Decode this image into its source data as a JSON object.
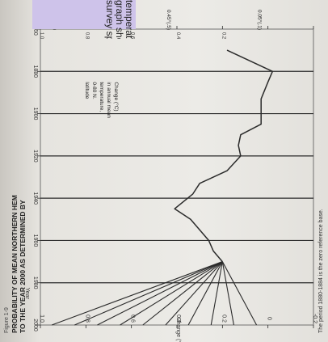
{
  "caption": {
    "lines": [
      "temperatures to the year 2000. Th",
      "graph showing the results of the",
      "survey speaks for itself. [ 12]"
    ],
    "color": "#cec3ea"
  },
  "figure": {
    "label": "Figure 1-9",
    "title_line1": "PROBABILITY OF MEAN NORTHERN HEM",
    "title_line2": "TO THE YEAR 2000 AS DETERMINED BY",
    "footnote": "The period 1880-1884 is the zero reference base."
  },
  "chart_data": {
    "type": "line",
    "title": "PROBABILITY OF MEAN NORTHERN HEM TO THE YEAR 2000 AS DETERMINED BY",
    "xlabel": "Year",
    "ylabel": "Change (°C)",
    "xlim": [
      1860,
      2000
    ],
    "ylim": [
      -0.2,
      1.0
    ],
    "x_ticks": [
      "1860",
      "1880",
      "1900",
      "1920",
      "1940",
      "1960",
      "1980",
      "2000"
    ],
    "y_ticks": [
      "-0.2",
      "0",
      "0.2",
      "0.4",
      "0.6",
      "0.8",
      "1.0"
    ],
    "right_ticks": [
      "1.0",
      "0.8",
      "0.6",
      "0.4",
      "0.2",
      "0",
      "-0.2"
    ],
    "grid": "vertical lines at 20-year intervals",
    "legend_note": [
      "Change (°C)",
      "in annual mean",
      "temperature,",
      "0-80 N.",
      "latitude"
    ],
    "series": [
      {
        "values": [
          [
            1870,
            0.18
          ],
          [
            1880,
            -0.02
          ],
          [
            1885,
            0.0
          ],
          [
            1893,
            0.03
          ],
          [
            1905,
            0.03
          ],
          [
            1910,
            0.12
          ],
          [
            1915,
            0.13
          ],
          [
            1920,
            0.12
          ],
          [
            1927,
            0.18
          ],
          [
            1933,
            0.3
          ],
          [
            1938,
            0.33
          ],
          [
            1945,
            0.41
          ],
          [
            1950,
            0.34
          ],
          [
            1955,
            0.3
          ],
          [
            1960,
            0.26
          ],
          [
            1965,
            0.24
          ],
          [
            1970,
            0.2
          ]
        ]
      }
    ],
    "projections": [
      {
        "label": "0.95°(.9)",
        "values": [
          [
            1970,
            0.2
          ],
          [
            2000,
            0.95
          ]
        ]
      },
      {
        "label": "",
        "values": [
          [
            1970,
            0.2
          ],
          [
            2000,
            0.85
          ]
        ]
      },
      {
        "label": "",
        "values": [
          [
            1970,
            0.2
          ],
          [
            2000,
            0.75
          ]
        ]
      },
      {
        "label": "",
        "values": [
          [
            1970,
            0.2
          ],
          [
            2000,
            0.65
          ]
        ]
      },
      {
        "label": "",
        "values": [
          [
            1970,
            0.2
          ],
          [
            2000,
            0.55
          ]
        ]
      },
      {
        "label": "0.45°(.5)",
        "values": [
          [
            1970,
            0.2
          ],
          [
            2000,
            0.45
          ]
        ]
      },
      {
        "label": "",
        "values": [
          [
            1970,
            0.2
          ],
          [
            2000,
            0.35
          ]
        ]
      },
      {
        "label": "",
        "values": [
          [
            1970,
            0.2
          ],
          [
            2000,
            0.25
          ]
        ]
      },
      {
        "label": "",
        "values": [
          [
            1970,
            0.2
          ],
          [
            2000,
            0.15
          ]
        ]
      },
      {
        "label": "0.05°(.1)",
        "values": [
          [
            1970,
            0.2
          ],
          [
            2000,
            0.05
          ]
        ]
      }
    ],
    "line_color": "#2b2b2b"
  }
}
